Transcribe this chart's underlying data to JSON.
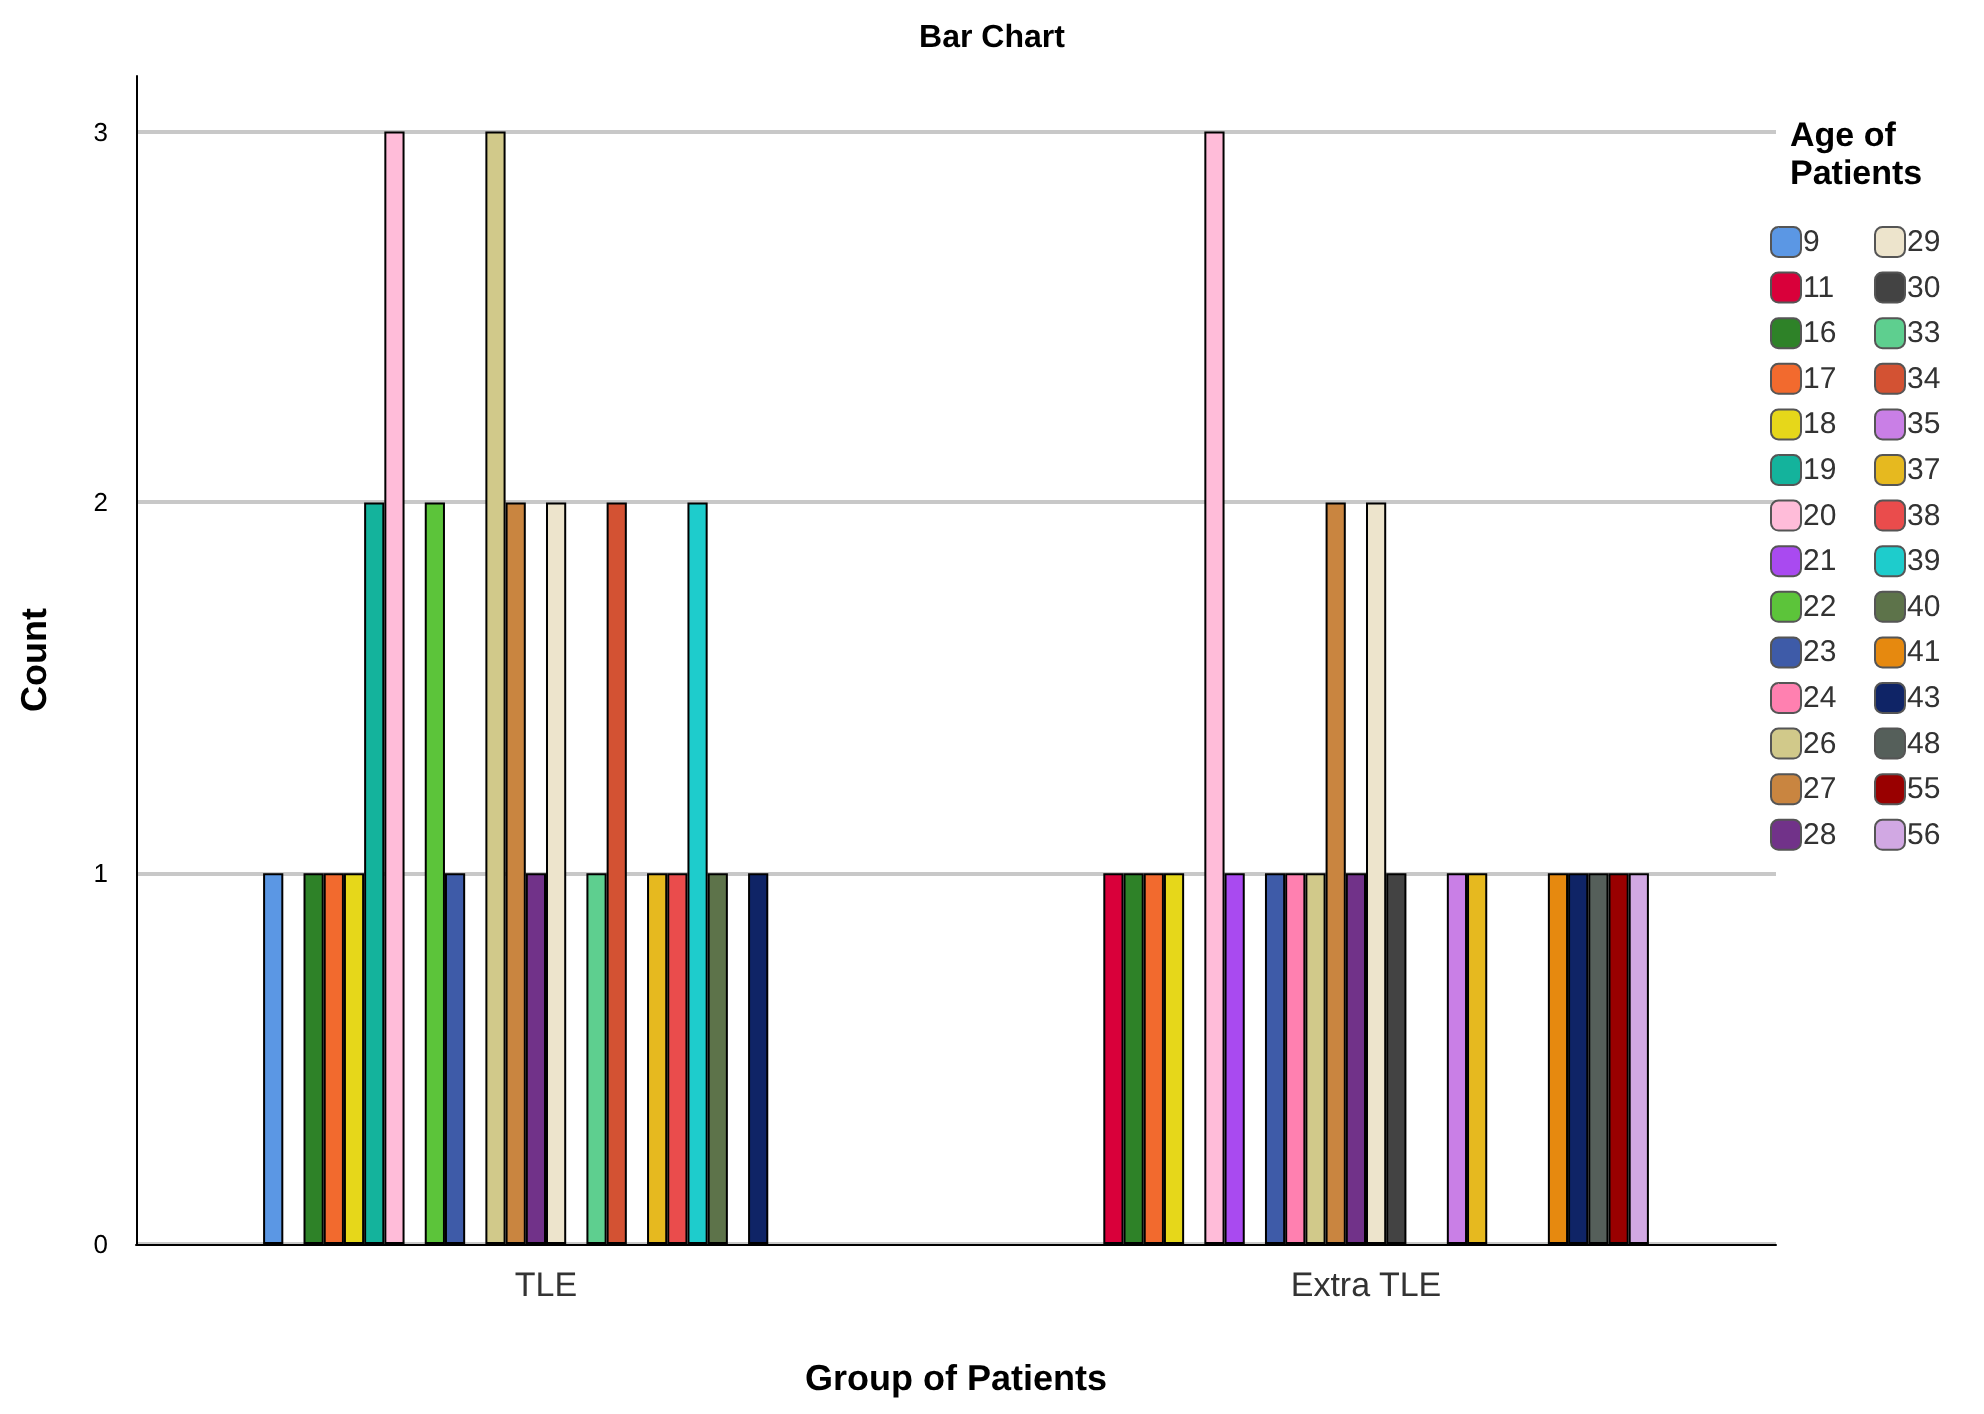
{
  "chart_data": {
    "type": "bar",
    "title": "Bar Chart",
    "xlabel": "Group of Patients",
    "ylabel": "Count",
    "legend_title": "Age of Patients",
    "categories": [
      "TLE",
      "Extra TLE"
    ],
    "ylim": [
      0,
      3.15
    ],
    "yticks": [
      0,
      1,
      2,
      3
    ],
    "grid": "y",
    "legend": "right",
    "series": [
      {
        "name": "9",
        "color": "#5b97e4",
        "values": [
          1,
          0
        ]
      },
      {
        "name": "11",
        "color": "#d9003a",
        "values": [
          0,
          1
        ]
      },
      {
        "name": "16",
        "color": "#2e8228",
        "values": [
          1,
          1
        ]
      },
      {
        "name": "17",
        "color": "#f26a2e",
        "values": [
          1,
          1
        ]
      },
      {
        "name": "18",
        "color": "#e6d71a",
        "values": [
          1,
          1
        ]
      },
      {
        "name": "19",
        "color": "#14b39c",
        "values": [
          2,
          0
        ]
      },
      {
        "name": "20",
        "color": "#ffbcd9",
        "values": [
          3,
          3
        ]
      },
      {
        "name": "21",
        "color": "#a94af0",
        "values": [
          0,
          1
        ]
      },
      {
        "name": "22",
        "color": "#5cc43a",
        "values": [
          2,
          0
        ]
      },
      {
        "name": "23",
        "color": "#3e5ba8",
        "values": [
          1,
          1
        ]
      },
      {
        "name": "24",
        "color": "#ff80b0",
        "values": [
          0,
          1
        ]
      },
      {
        "name": "26",
        "color": "#d1c98a",
        "values": [
          3,
          1
        ]
      },
      {
        "name": "27",
        "color": "#c98540",
        "values": [
          2,
          2
        ]
      },
      {
        "name": "28",
        "color": "#713289",
        "values": [
          1,
          1
        ]
      },
      {
        "name": "29",
        "color": "#ede4cc",
        "values": [
          2,
          2
        ]
      },
      {
        "name": "30",
        "color": "#434343",
        "values": [
          0,
          1
        ]
      },
      {
        "name": "33",
        "color": "#5ecf8f",
        "values": [
          1,
          0
        ]
      },
      {
        "name": "34",
        "color": "#d35233",
        "values": [
          2,
          0
        ]
      },
      {
        "name": "35",
        "color": "#c97fe6",
        "values": [
          0,
          1
        ]
      },
      {
        "name": "37",
        "color": "#e6b91f",
        "values": [
          1,
          1
        ]
      },
      {
        "name": "38",
        "color": "#ea4c4c",
        "values": [
          1,
          0
        ]
      },
      {
        "name": "39",
        "color": "#1ecccc",
        "values": [
          2,
          0
        ]
      },
      {
        "name": "40",
        "color": "#5d734a",
        "values": [
          1,
          0
        ]
      },
      {
        "name": "41",
        "color": "#e6890f",
        "values": [
          0,
          1
        ]
      },
      {
        "name": "43",
        "color": "#0f2466",
        "values": [
          1,
          1
        ]
      },
      {
        "name": "48",
        "color": "#555f5a",
        "values": [
          0,
          1
        ]
      },
      {
        "name": "55",
        "color": "#990000",
        "values": [
          0,
          1
        ]
      },
      {
        "name": "56",
        "color": "#d1a8e3",
        "values": [
          0,
          1
        ]
      }
    ]
  }
}
